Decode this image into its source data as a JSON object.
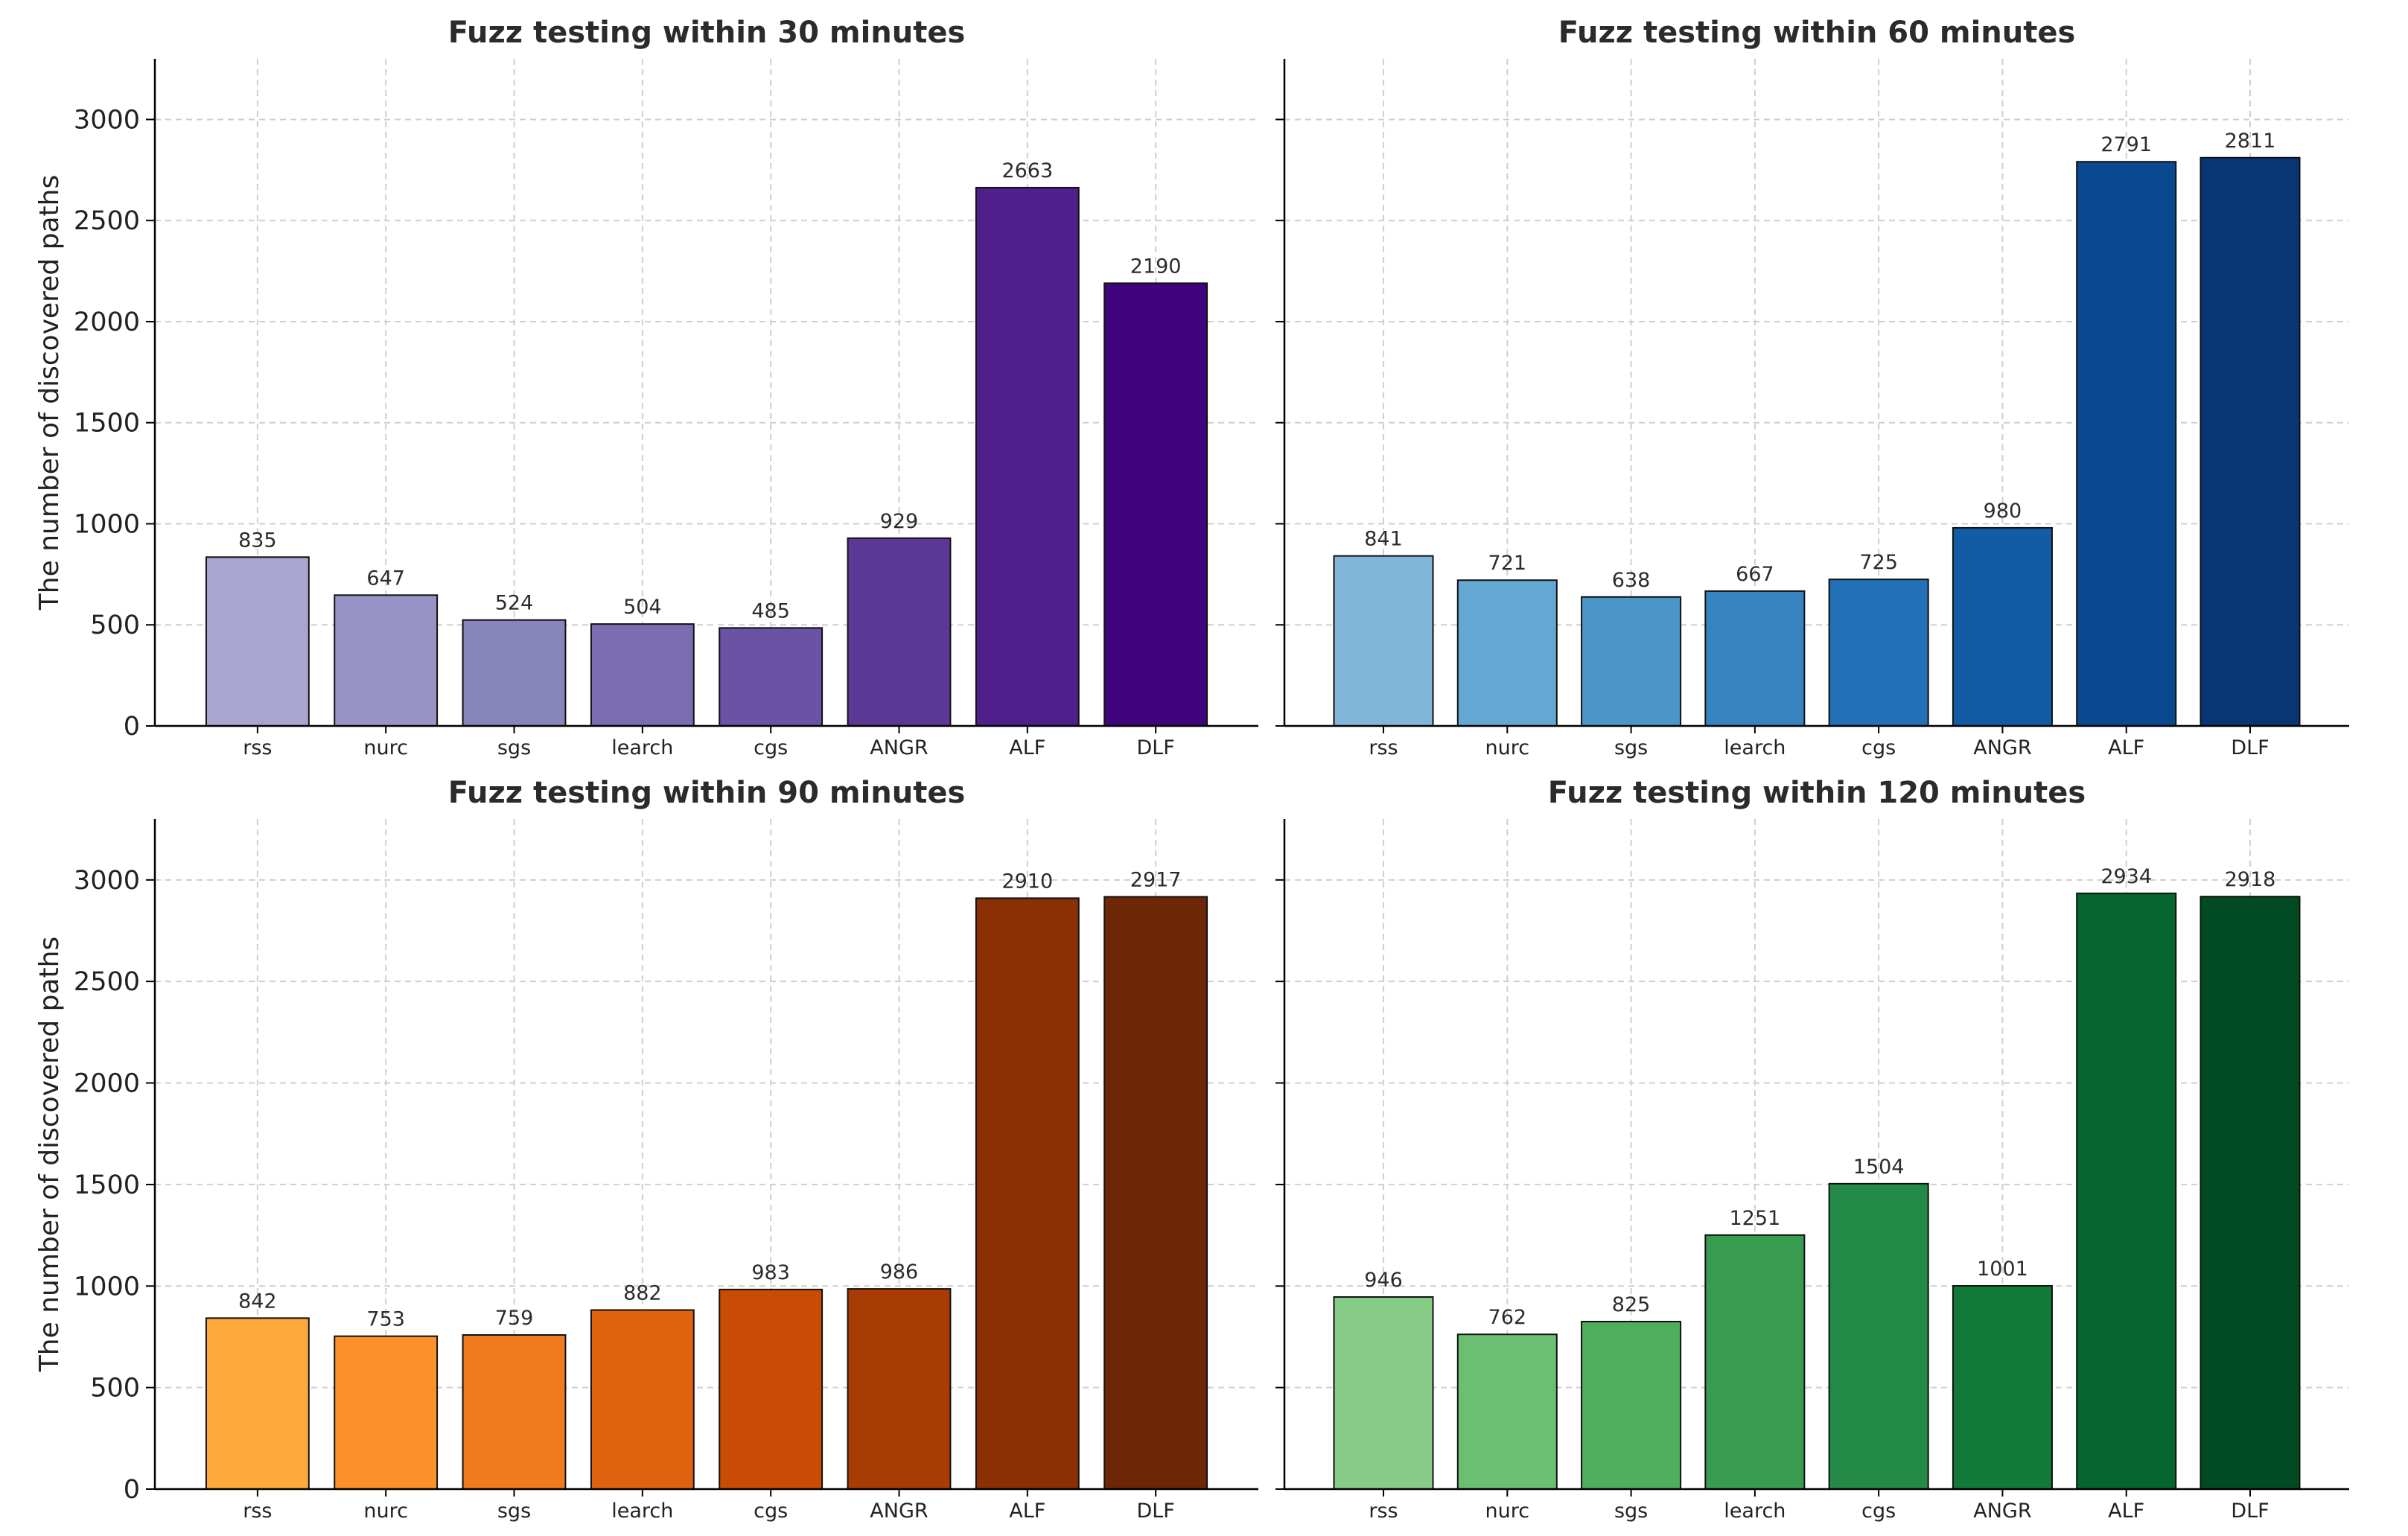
{
  "chart_data": [
    {
      "type": "bar",
      "title": "Fuzz testing within 30 minutes",
      "xlabel": "",
      "ylabel": "The number of discovered paths",
      "ylim": [
        0,
        3300
      ],
      "yticks": [
        0,
        500,
        1000,
        1500,
        2000,
        2500,
        3000
      ],
      "grid": true,
      "categories": [
        "rss",
        "nurc",
        "sgs",
        "learch",
        "cgs",
        "ANGR",
        "ALF",
        "DLF"
      ],
      "values": [
        835,
        647,
        524,
        504,
        485,
        929,
        2663,
        2190
      ],
      "colors": [
        "#a8a6cf",
        "#9895c6",
        "#8884bc",
        "#7a6db2",
        "#6a52a4",
        "#5c3896",
        "#4f1f8b",
        "#40047d"
      ]
    },
    {
      "type": "bar",
      "title": "Fuzz testing within 60 minutes",
      "xlabel": "",
      "ylabel": "",
      "ylim": [
        0,
        3300
      ],
      "yticks": [
        0,
        500,
        1000,
        1500,
        2000,
        2500,
        3000
      ],
      "grid": true,
      "categories": [
        "rss",
        "nurc",
        "sgs",
        "learch",
        "cgs",
        "ANGR",
        "ALF",
        "DLF"
      ],
      "values": [
        841,
        721,
        638,
        667,
        725,
        980,
        2791,
        2811
      ],
      "colors": [
        "#7fb6d9",
        "#64a7d2",
        "#4a96c9",
        "#3583c0",
        "#2270b5",
        "#125ca6",
        "#0a4890",
        "#083674"
      ]
    },
    {
      "type": "bar",
      "title": "Fuzz testing within 90 minutes",
      "xlabel": "",
      "ylabel": "The number of discovered paths",
      "ylim": [
        0,
        3300
      ],
      "yticks": [
        0,
        500,
        1000,
        1500,
        2000,
        2500,
        3000
      ],
      "grid": true,
      "categories": [
        "rss",
        "nurc",
        "sgs",
        "learch",
        "cgs",
        "ANGR",
        "ALF",
        "DLF"
      ],
      "values": [
        842,
        753,
        759,
        882,
        983,
        986,
        2910,
        2917
      ],
      "colors": [
        "#fea93b",
        "#fb9128",
        "#f07a1e",
        "#e0620f",
        "#ca4b04",
        "#a93c05",
        "#8b2f04",
        "#6e2706"
      ]
    },
    {
      "type": "bar",
      "title": "Fuzz testing within 120 minutes",
      "xlabel": "",
      "ylabel": "",
      "ylim": [
        0,
        3300
      ],
      "yticks": [
        0,
        500,
        1000,
        1500,
        2000,
        2500,
        3000
      ],
      "grid": true,
      "categories": [
        "rss",
        "nurc",
        "sgs",
        "learch",
        "cgs",
        "ANGR",
        "ALF",
        "DLF"
      ],
      "values": [
        946,
        762,
        825,
        1251,
        1504,
        1001,
        2934,
        2918
      ],
      "colors": [
        "#86cc86",
        "#6cbf71",
        "#4eae5c",
        "#379c50",
        "#238a47",
        "#127a39",
        "#04662d",
        "#024a21"
      ]
    }
  ]
}
